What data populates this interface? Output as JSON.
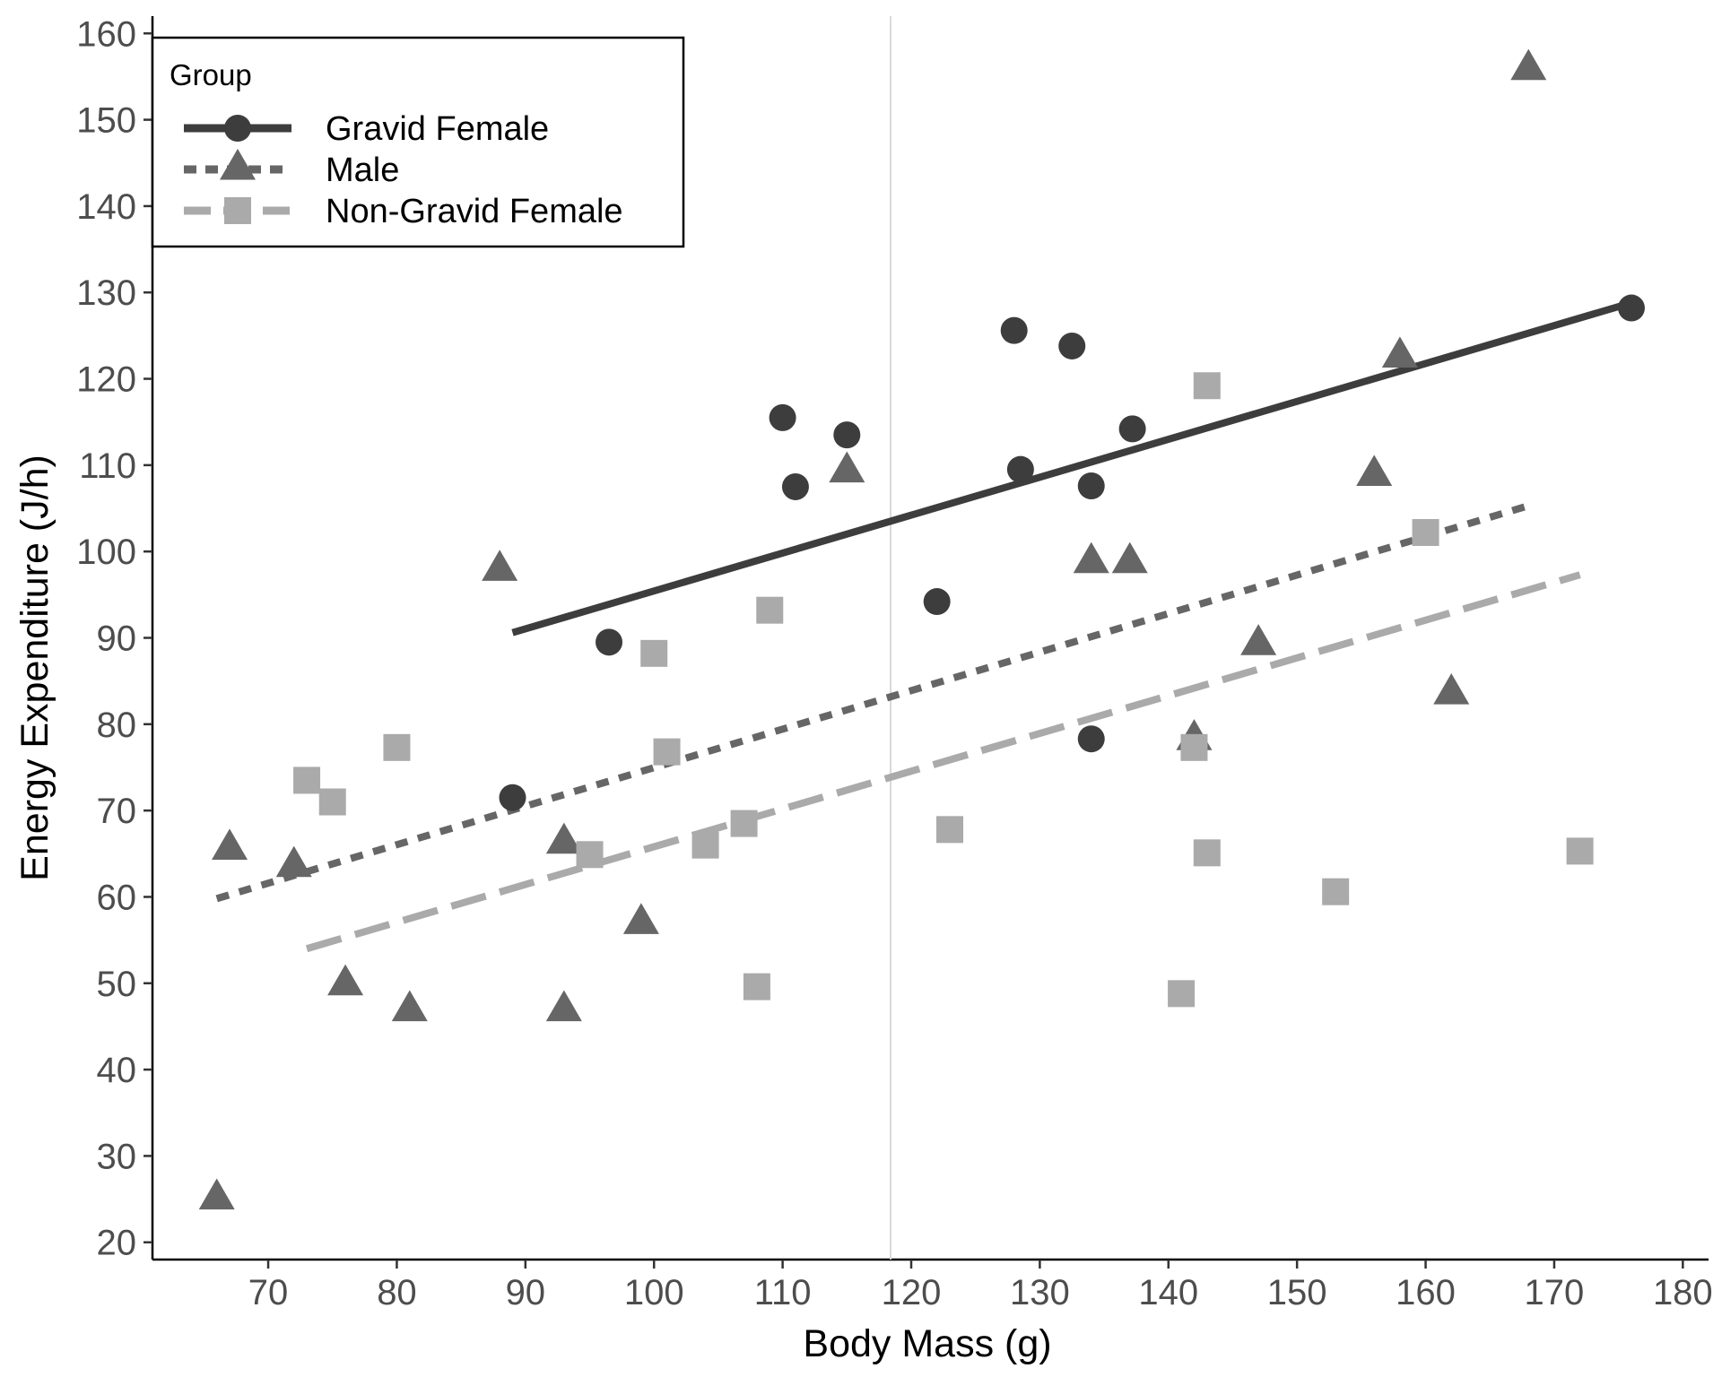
{
  "chart_data": {
    "type": "scatter",
    "xlabel": "Body Mass (g)",
    "ylabel": "Energy Expenditure (J/h)",
    "xlim": [
      61,
      182
    ],
    "ylim": [
      18,
      162
    ],
    "x_ticks": [
      70,
      80,
      90,
      100,
      110,
      120,
      130,
      140,
      150,
      160,
      170,
      180
    ],
    "y_ticks": [
      20,
      30,
      40,
      50,
      60,
      70,
      80,
      90,
      100,
      110,
      120,
      130,
      140,
      150,
      160
    ],
    "grid": false,
    "reference_line_x": 118.4,
    "legend": {
      "title": "Group",
      "position": "top-left"
    },
    "series": [
      {
        "name": "Gravid Female",
        "marker": "circle",
        "line_style": "solid",
        "color": "#3d3d3d",
        "points": [
          [
            89,
            71.5
          ],
          [
            96.5,
            89.5
          ],
          [
            110,
            115.5
          ],
          [
            111,
            107.5
          ],
          [
            115,
            113.5
          ],
          [
            122,
            94.2
          ],
          [
            128,
            125.6
          ],
          [
            128.5,
            109.5
          ],
          [
            132.5,
            123.8
          ],
          [
            134,
            107.6
          ],
          [
            134,
            78.3
          ],
          [
            137.2,
            114.2
          ],
          [
            176,
            128.2
          ]
        ],
        "trend": [
          [
            89,
            90.6
          ],
          [
            176,
            128.8
          ]
        ]
      },
      {
        "name": "Male",
        "marker": "triangle",
        "line_style": "dashed",
        "color": "#666666",
        "points": [
          [
            66,
            25
          ],
          [
            67,
            65.5
          ],
          [
            72,
            63.5
          ],
          [
            76,
            49.8
          ],
          [
            81,
            46.8
          ],
          [
            88,
            97.8
          ],
          [
            93,
            46.8
          ],
          [
            93,
            66.2
          ],
          [
            99,
            56.9
          ],
          [
            115,
            109.2
          ],
          [
            134,
            98.7
          ],
          [
            137,
            98.7
          ],
          [
            142,
            78.2
          ],
          [
            147,
            89.2
          ],
          [
            156,
            108.8
          ],
          [
            158,
            122.5
          ],
          [
            162,
            83.5
          ],
          [
            168,
            155.8
          ]
        ],
        "trend": [
          [
            66,
            59.8
          ],
          [
            168,
            105.3
          ]
        ]
      },
      {
        "name": "Non-Gravid Female",
        "marker": "square",
        "line_style": "longdash",
        "color": "#aaaaaa",
        "points": [
          [
            73,
            73.5
          ],
          [
            75,
            71.0
          ],
          [
            80,
            77.3
          ],
          [
            95,
            64.9
          ],
          [
            100,
            88.2
          ],
          [
            101,
            76.8
          ],
          [
            104,
            66.0
          ],
          [
            107,
            68.5
          ],
          [
            108,
            49.6
          ],
          [
            109,
            93.2
          ],
          [
            123,
            67.8
          ],
          [
            141,
            48.8
          ],
          [
            142,
            77.3
          ],
          [
            143,
            65.1
          ],
          [
            143,
            119.2
          ],
          [
            153,
            60.6
          ],
          [
            160,
            102.2
          ],
          [
            172,
            65.3
          ]
        ],
        "trend": [
          [
            73,
            54.0
          ],
          [
            172,
            97.3
          ]
        ]
      }
    ]
  }
}
